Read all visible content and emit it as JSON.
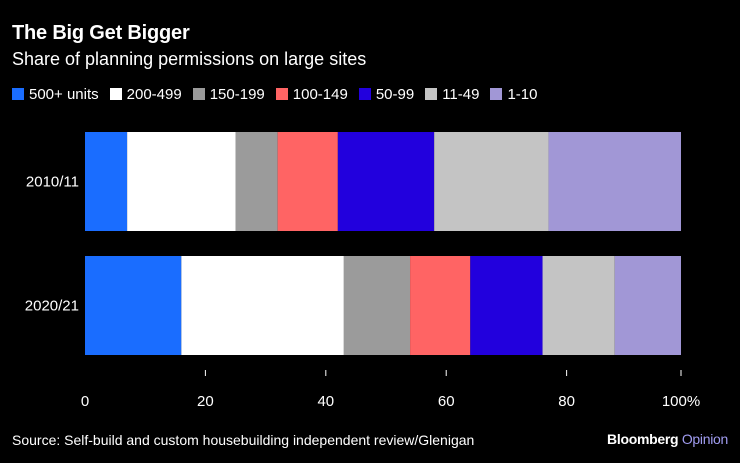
{
  "chart_data": {
    "type": "bar",
    "orientation": "horizontal",
    "stacked": true,
    "title": "The Big Get Bigger",
    "subtitle": "Share of planning permissions on large sites",
    "categories": [
      "2010/11",
      "2020/21"
    ],
    "series": [
      {
        "name": "500+ units",
        "color": "#1a6dff",
        "values": [
          7,
          16
        ]
      },
      {
        "name": "200-499",
        "color": "#ffffff",
        "values": [
          18,
          27
        ]
      },
      {
        "name": "150-199",
        "color": "#9b9b9b",
        "values": [
          7,
          11
        ]
      },
      {
        "name": "100-149",
        "color": "#ff6464",
        "values": [
          10,
          10
        ]
      },
      {
        "name": "50-99",
        "color": "#2200dd",
        "values": [
          16,
          12
        ]
      },
      {
        "name": "11-49",
        "color": "#c4c4c4",
        "values": [
          19,
          12
        ]
      },
      {
        "name": "1-10",
        "color": "#a197d6",
        "values": [
          22,
          11
        ]
      }
    ],
    "xlim": [
      0,
      99
    ],
    "xticks": [
      0,
      20,
      40,
      60,
      80
    ],
    "xtick_labels": [
      "0",
      "20",
      "40",
      "60",
      "80"
    ],
    "xtick_last_label": "100%",
    "xtick_last_value": 99,
    "xlabel": "",
    "ylabel": "",
    "grid": false,
    "legend_position": "top-left"
  },
  "footer": {
    "source": "Source: Self-build and custom housebuilding independent review/Glenigan",
    "brand_primary": "Bloomberg",
    "brand_secondary": "Opinion"
  }
}
